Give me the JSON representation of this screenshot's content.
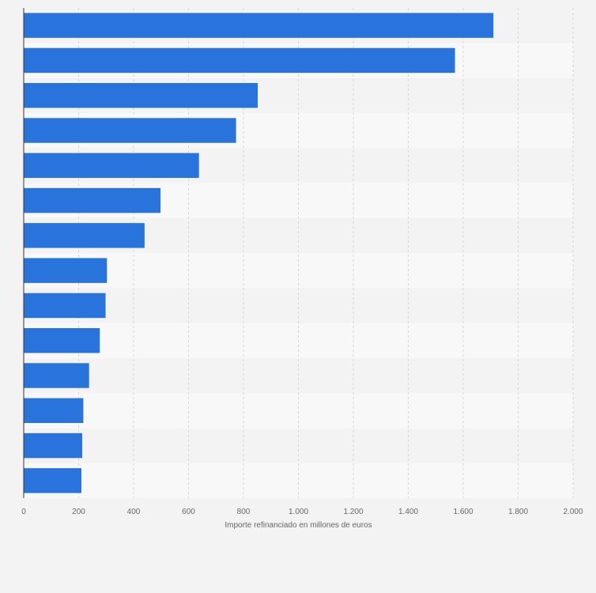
{
  "chart_data": {
    "type": "bar",
    "orientation": "horizontal",
    "title": "",
    "xlabel": "Importe refinanciado en millones de euros",
    "ylabel": "",
    "xlim": [
      0,
      2000
    ],
    "x_ticks": [
      0,
      200,
      400,
      600,
      800,
      1000,
      1200,
      1400,
      1600,
      1800,
      2000
    ],
    "x_tick_labels": [
      "0",
      "200",
      "400",
      "600",
      "800",
      "1.000",
      "1.200",
      "1.400",
      "1.600",
      "1.800",
      "2.000"
    ],
    "categories": [
      "",
      "",
      "",
      "",
      "",
      "",
      "",
      "",
      "",
      "",
      "",
      "",
      "",
      ""
    ],
    "values": [
      1710,
      1570,
      852,
      773,
      638,
      498,
      440,
      303,
      298,
      277,
      238,
      217,
      213,
      210
    ],
    "grid": true,
    "legend": "none"
  },
  "colors": {
    "bar": "#2874dc",
    "background": "#f3f3f3",
    "band_light": "#f8f8f8",
    "band_dark": "#f3f3f3",
    "grid": "#d6d6d6",
    "axis": "#333333"
  }
}
